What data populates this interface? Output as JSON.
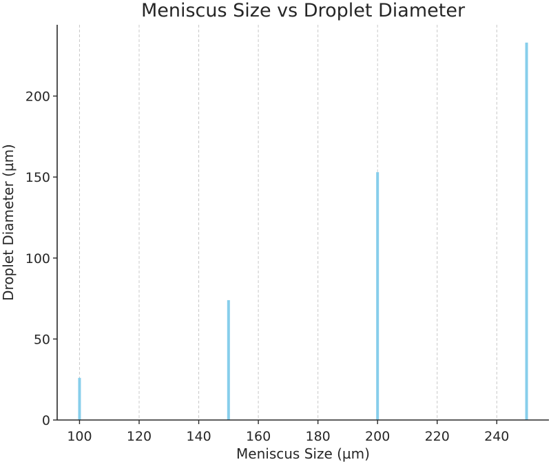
{
  "chart_data": {
    "type": "bar",
    "title": "Meniscus Size vs Droplet Diameter",
    "xlabel": "Meniscus Size (µm)",
    "ylabel": "Droplet Diameter (µm)",
    "x": [
      100,
      150,
      200,
      250
    ],
    "values": [
      26,
      74,
      153,
      233
    ],
    "xlim": [
      92.5,
      257.5
    ],
    "ylim": [
      0,
      244
    ],
    "xticks": [
      100,
      120,
      140,
      160,
      180,
      200,
      220,
      240
    ],
    "yticks": [
      0,
      50,
      100,
      150,
      200
    ],
    "grid": "x-dashed",
    "bar_color": "#87ceeb"
  }
}
